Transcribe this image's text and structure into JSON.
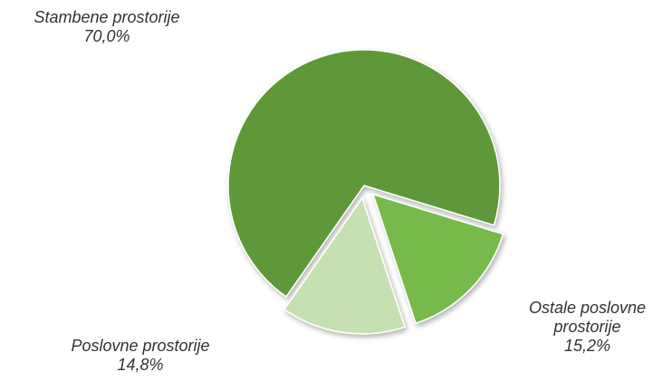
{
  "chart_data": {
    "type": "pie",
    "categories": [
      "Stambene prostorije",
      "Ostale poslovne prostorije",
      "Poslovne prostorije"
    ],
    "values": [
      70.0,
      15.2,
      14.8
    ],
    "value_labels": [
      "70,0%",
      "15,2%",
      "14,8%"
    ],
    "colors": [
      "#5e9838",
      "#78b94b",
      "#c5e0b3"
    ]
  }
}
